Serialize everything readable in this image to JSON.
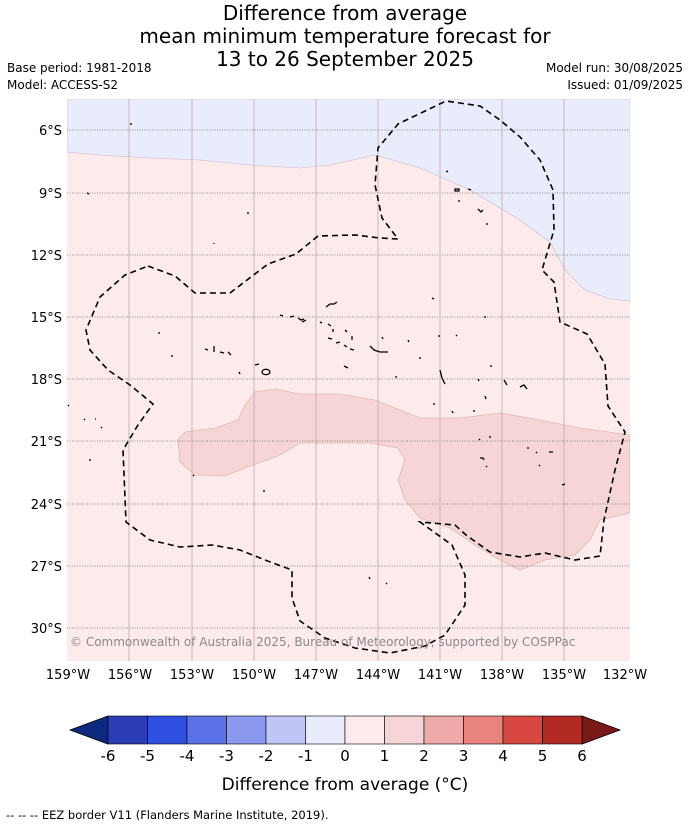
{
  "title": {
    "line1": "Difference from average",
    "line2": "mean minimum temperature forecast for",
    "line3": "13 to 26 September 2025"
  },
  "meta": {
    "base_period": "Base period: 1981-2018",
    "model": "Model: ACCESS-S2",
    "model_run": "Model run: 30/08/2025",
    "issued": "Issued: 01/09/2025"
  },
  "map": {
    "lat_labels": [
      "6°S",
      "9°S",
      "12°S",
      "15°S",
      "18°S",
      "21°S",
      "24°S",
      "27°S",
      "30°S"
    ],
    "lon_labels": [
      "159°W",
      "156°W",
      "153°W",
      "150°W",
      "147°W",
      "144°W",
      "141°W",
      "138°W",
      "135°W",
      "132°W"
    ],
    "copyright": "© Commonwealth of Australia 2025, Bureau of Meteorology, supported by COSPPac",
    "colors": {
      "neg1_0": "#e9ecfb",
      "pos0_1": "#fcebea",
      "pos1_2": "#f5d5d5"
    }
  },
  "colorbar": {
    "ticks": [
      "-6",
      "-5",
      "-4",
      "-3",
      "-2",
      "-1",
      "0",
      "1",
      "2",
      "3",
      "4",
      "5",
      "6"
    ],
    "colors": [
      "#0d2a80",
      "#2a3db5",
      "#2e4fe0",
      "#5b71e6",
      "#8a99ee",
      "#bfc6f5",
      "#e9ecfb",
      "#fcebea",
      "#f5d5d5",
      "#eeaaa9",
      "#e8837d",
      "#d94840",
      "#b12a24",
      "#7a1a18"
    ],
    "label": "Difference from average (°C)"
  },
  "footnote": "-- -- -- EEZ border V11 (Flanders Marine Institute, 2019)."
}
